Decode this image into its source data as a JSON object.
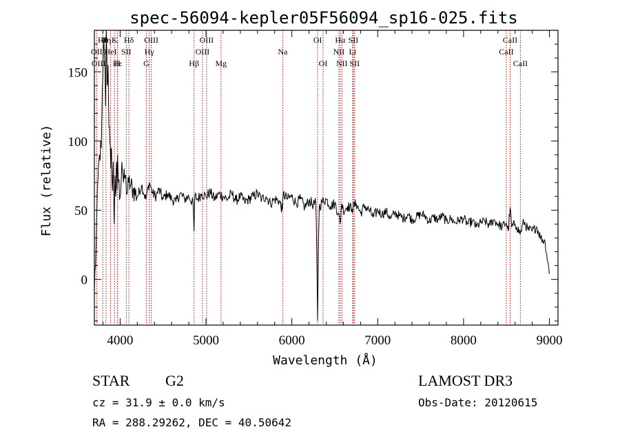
{
  "chart_data": {
    "type": "line",
    "title": "spec-56094-kepler05F56094_sp16-025.fits",
    "xlabel": "Wavelength (Å)",
    "ylabel": "Flux (relative)",
    "xlim": [
      3700,
      9100
    ],
    "ylim": [
      -33,
      180
    ],
    "xticks": [
      4000,
      5000,
      6000,
      7000,
      8000,
      9000
    ],
    "yticks": [
      0,
      50,
      100,
      150
    ],
    "series": [
      {
        "name": "flux",
        "x": [
          3700,
          3720,
          3740,
          3760,
          3780,
          3800,
          3810,
          3820,
          3830,
          3840,
          3850,
          3860,
          3870,
          3880,
          3890,
          3900,
          3910,
          3920,
          3930,
          3935,
          3940,
          3950,
          3960,
          3965,
          3970,
          3980,
          4000,
          4020,
          4040,
          4060,
          4080,
          4100,
          4120,
          4150,
          4200,
          4250,
          4300,
          4340,
          4380,
          4420,
          4450,
          4500,
          4550,
          4600,
          4650,
          4700,
          4750,
          4800,
          4850,
          4860,
          4870,
          4900,
          4950,
          5000,
          5050,
          5100,
          5150,
          5200,
          5250,
          5300,
          5350,
          5400,
          5450,
          5500,
          5550,
          5600,
          5650,
          5700,
          5750,
          5800,
          5850,
          5890,
          5900,
          5950,
          6000,
          6050,
          6100,
          6150,
          6200,
          6250,
          6280,
          6290,
          6300,
          6310,
          6320,
          6350,
          6400,
          6450,
          6500,
          6540,
          6563,
          6580,
          6600,
          6650,
          6700,
          6750,
          6800,
          6850,
          6900,
          6950,
          7000,
          7050,
          7100,
          7150,
          7200,
          7250,
          7300,
          7350,
          7400,
          7450,
          7500,
          7550,
          7600,
          7650,
          7700,
          7750,
          7800,
          7850,
          7900,
          7950,
          8000,
          8050,
          8100,
          8150,
          8200,
          8250,
          8300,
          8350,
          8400,
          8450,
          8498,
          8520,
          8542,
          8560,
          8600,
          8620,
          8662,
          8700,
          8750,
          8800,
          8850,
          8900,
          8950,
          9000
        ],
        "values": [
          -8,
          25,
          70,
          90,
          95,
          150,
          175,
          160,
          125,
          180,
          140,
          155,
          110,
          100,
          80,
          95,
          64,
          85,
          40,
          55,
          75,
          60,
          85,
          65,
          90,
          70,
          60,
          85,
          70,
          75,
          62,
          70,
          68,
          65,
          60,
          68,
          58,
          70,
          62,
          60,
          65,
          58,
          62,
          58,
          56,
          62,
          58,
          60,
          55,
          35,
          60,
          58,
          62,
          60,
          63,
          58,
          62,
          60,
          58,
          62,
          57,
          60,
          56,
          58,
          60,
          62,
          58,
          60,
          55,
          58,
          57,
          50,
          62,
          58,
          60,
          55,
          58,
          52,
          57,
          54,
          55,
          20,
          -30,
          30,
          52,
          56,
          58,
          53,
          55,
          48,
          40,
          55,
          50,
          53,
          51,
          55,
          48,
          53,
          50,
          45,
          50,
          47,
          49,
          44,
          48,
          46,
          44,
          47,
          43,
          45,
          47,
          46,
          42,
          45,
          43,
          46,
          42,
          44,
          41,
          43,
          44,
          40,
          42,
          38,
          41,
          42,
          39,
          43,
          40,
          38,
          41,
          35,
          52,
          38,
          40,
          38,
          33,
          42,
          36,
          35,
          38,
          30,
          27,
          4
        ]
      }
    ],
    "spectral_lines": [
      {
        "name": "Hη",
        "wavelength": 3835
      },
      {
        "name": "OII",
        "wavelength": 3727
      },
      {
        "name": "Hθ",
        "wavelength": 3798
      },
      {
        "name": "K",
        "wavelength": 3934
      },
      {
        "name": "Hε",
        "wavelength": 3970
      },
      {
        "name": "He I",
        "wavelength": 3889
      },
      {
        "name": "H",
        "wavelength": 3968
      },
      {
        "name": "Hδ",
        "wavelength": 4102
      },
      {
        "name": "SII",
        "wavelength": 4072
      },
      {
        "name": "OIII",
        "wavelength": 4363
      },
      {
        "name": "Hγ",
        "wavelength": 4340
      },
      {
        "name": "G",
        "wavelength": 4305
      },
      {
        "name": "Hβ",
        "wavelength": 4861
      },
      {
        "name": "OIII",
        "wavelength": 4959
      },
      {
        "name": "OIII",
        "wavelength": 5007
      },
      {
        "name": "Mg",
        "wavelength": 5175
      },
      {
        "name": "Na",
        "wavelength": 5893
      },
      {
        "name": "OI",
        "wavelength": 6300
      },
      {
        "name": "OI",
        "wavelength": 6364
      },
      {
        "name": "NII",
        "wavelength": 6548
      },
      {
        "name": "Hα",
        "wavelength": 6563
      },
      {
        "name": "NII",
        "wavelength": 6583
      },
      {
        "name": "Li",
        "wavelength": 6708
      },
      {
        "name": "SII",
        "wavelength": 6716
      },
      {
        "name": "SII",
        "wavelength": 6731
      },
      {
        "name": "CaII",
        "wavelength": 8498
      },
      {
        "name": "CaII",
        "wavelength": 8542
      },
      {
        "name": "CaII",
        "wavelength": 8662
      }
    ]
  },
  "labels": {
    "line_labels": [
      {
        "text": "Hθ",
        "row": 1,
        "w": 3798
      },
      {
        "text": "Hη",
        "row": 1,
        "w": 3835
      },
      {
        "text": "K",
        "row": 1,
        "w": 3934
      },
      {
        "text": "Hδ",
        "row": 1,
        "w": 4102
      },
      {
        "text": "OIII",
        "row": 1,
        "w": 4363
      },
      {
        "text": "OIII",
        "row": 1,
        "w": 5007
      },
      {
        "text": "OI",
        "row": 1,
        "w": 6300
      },
      {
        "text": "Hα",
        "row": 1,
        "w": 6563
      },
      {
        "text": "SII",
        "row": 1,
        "w": 6716
      },
      {
        "text": "CaII",
        "row": 1,
        "w": 8542
      },
      {
        "text": "OII",
        "row": 2,
        "w": 3727
      },
      {
        "text": "HeI",
        "row": 2,
        "w": 3889
      },
      {
        "text": "SII",
        "row": 2,
        "w": 4072
      },
      {
        "text": "Hγ",
        "row": 2,
        "w": 4340
      },
      {
        "text": "OIII",
        "row": 2,
        "w": 4959
      },
      {
        "text": "Na",
        "row": 2,
        "w": 5893
      },
      {
        "text": "NII",
        "row": 2,
        "w": 6548
      },
      {
        "text": "Li",
        "row": 2,
        "w": 6708
      },
      {
        "text": "CaII",
        "row": 2,
        "w": 8498
      },
      {
        "text": "OIII",
        "row": 3,
        "w": 3750
      },
      {
        "text": "Hε",
        "row": 3,
        "w": 3970
      },
      {
        "text": "H",
        "row": 3,
        "w": 3968
      },
      {
        "text": "G",
        "row": 3,
        "w": 4305
      },
      {
        "text": "Hβ",
        "row": 3,
        "w": 4861
      },
      {
        "text": "Mg",
        "row": 3,
        "w": 5175
      },
      {
        "text": "OI",
        "row": 3,
        "w": 6364
      },
      {
        "text": "NII",
        "row": 3,
        "w": 6583
      },
      {
        "text": "SII",
        "row": 3,
        "w": 6731
      },
      {
        "text": "CaII",
        "row": 3,
        "w": 8662
      }
    ]
  },
  "info": {
    "object_class": "STAR",
    "subclass": "G2",
    "survey": "LAMOST DR3",
    "cz": "cz = 31.9 ± 0.0 km/s",
    "obs_date": "Obs-Date: 20120615",
    "coords": "RA = 288.29262, DEC =  40.50642"
  }
}
